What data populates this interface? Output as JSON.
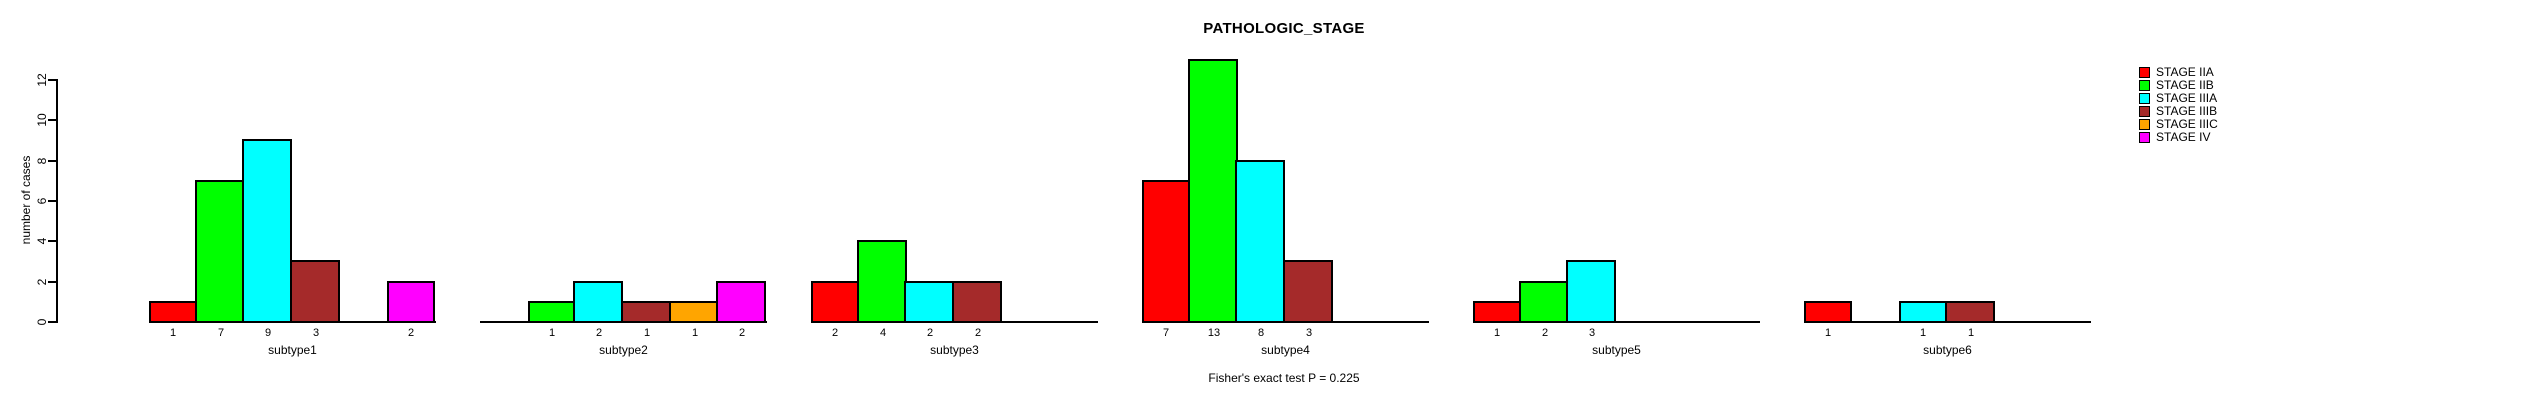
{
  "chart_data": {
    "type": "bar",
    "title": "PATHOLOGIC_STAGE",
    "ylabel": "number of cases",
    "ylim": [
      0,
      12
    ],
    "yticks": [
      0,
      2,
      4,
      6,
      8,
      10,
      12
    ],
    "grid": false,
    "legend_position": "right",
    "annotation": "Fisher's exact test P = 0.225",
    "bar_value_labels_shown": true,
    "axis_color": "#000000",
    "background_color": "#FFFFFF",
    "categories": [
      "subtype1",
      "subtype2",
      "subtype3",
      "subtype4",
      "subtype5",
      "subtype6"
    ],
    "series": [
      {
        "name": "STAGE IIA",
        "color": "#FF0000",
        "values": [
          1,
          0,
          2,
          7,
          1,
          1
        ]
      },
      {
        "name": "STAGE IIB",
        "color": "#00FF00",
        "values": [
          7,
          1,
          4,
          13,
          2,
          0
        ]
      },
      {
        "name": "STAGE IIIA",
        "color": "#00FFFF",
        "values": [
          9,
          2,
          2,
          8,
          3,
          1
        ]
      },
      {
        "name": "STAGE IIIB",
        "color": "#A52A2A",
        "values": [
          3,
          1,
          2,
          3,
          0,
          1
        ]
      },
      {
        "name": "STAGE IIIC",
        "color": "#FFA500",
        "values": [
          0,
          1,
          0,
          0,
          0,
          0
        ]
      },
      {
        "name": "STAGE IV",
        "color": "#FF00FF",
        "values": [
          2,
          2,
          0,
          0,
          0,
          0
        ]
      }
    ]
  }
}
